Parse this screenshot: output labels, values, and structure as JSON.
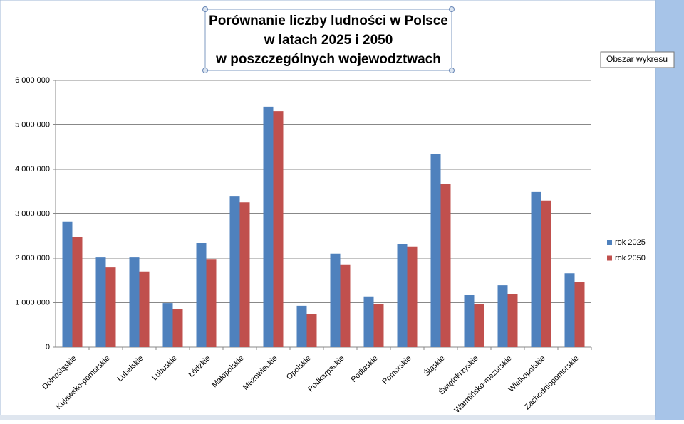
{
  "chart_data": {
    "type": "bar",
    "title": [
      "Porównanie liczby ludności w Polsce",
      "w latach 2025 i 2050",
      "w poszczególnych wojewodztwach"
    ],
    "categories": [
      "Dolnośląskie",
      "Kujawsko-pomorskie",
      "Lubelskie",
      "Lubuskie",
      "Łódzkie",
      "Małopolskie",
      "Mazowieckie",
      "Opolskie",
      "Podkarpackie",
      "Podlaskie",
      "Pomorskie",
      "Śląskie",
      "Świętokrzyskie",
      "Warmińsko-mazurskie",
      "Wielkopolskie",
      "Zachodniopomorskie"
    ],
    "series": [
      {
        "name": "rok 2025",
        "color": "#4f81bd",
        "values": [
          2820000,
          2030000,
          2030000,
          990000,
          2350000,
          3390000,
          5410000,
          930000,
          2100000,
          1140000,
          2320000,
          4350000,
          1180000,
          1390000,
          3490000,
          1660000
        ]
      },
      {
        "name": "rok 2050",
        "color": "#c0504d",
        "values": [
          2480000,
          1790000,
          1700000,
          860000,
          1980000,
          3260000,
          5310000,
          740000,
          1860000,
          960000,
          2260000,
          3680000,
          960000,
          1200000,
          3300000,
          1460000
        ]
      }
    ],
    "ylim": [
      0,
      6000000
    ],
    "yticks": [
      0,
      {
        "value": 1000000,
        "label": "1 000 000"
      },
      {
        "value": 2000000,
        "label": "2 000 000"
      },
      {
        "value": 3000000,
        "label": "3 000 000"
      },
      {
        "value": 4000000,
        "label": "4 000 000"
      },
      {
        "value": 5000000,
        "label": "5 000 000"
      },
      {
        "value": 6000000,
        "label": "6 000 000"
      }
    ],
    "grid": true,
    "legend": "right",
    "tooltip": "Obszar wykresu"
  }
}
